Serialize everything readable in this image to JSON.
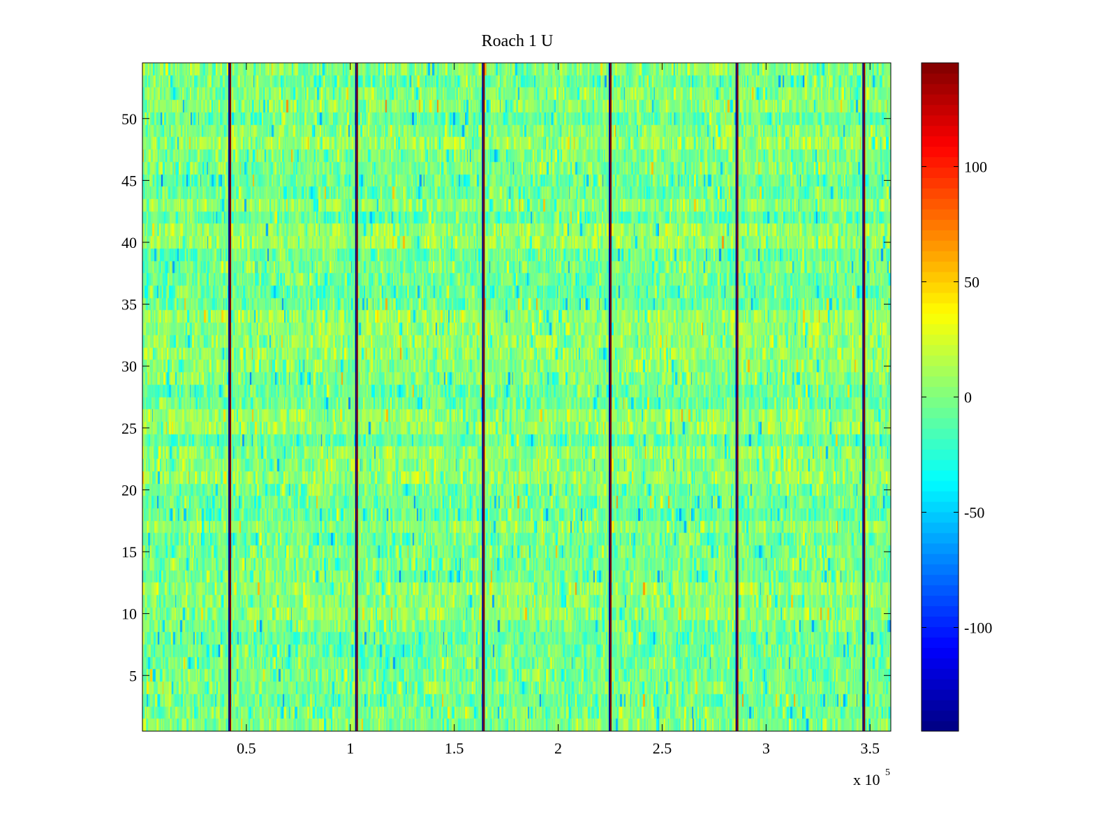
{
  "chart_data": {
    "type": "heatmap",
    "title": "Roach 1 U",
    "xlabel": "",
    "ylabel": "",
    "x_multiplier_label": "x 10",
    "x_multiplier_exponent": "5",
    "xlim": [
      0,
      3.6
    ],
    "ylim": [
      0.5,
      54.5
    ],
    "x_ticks": [
      {
        "value": 0.5,
        "label": "0.5"
      },
      {
        "value": 1,
        "label": "1"
      },
      {
        "value": 1.5,
        "label": "1.5"
      },
      {
        "value": 2,
        "label": "2"
      },
      {
        "value": 2.5,
        "label": "2.5"
      },
      {
        "value": 3,
        "label": "3"
      },
      {
        "value": 3.5,
        "label": "3.5"
      }
    ],
    "y_ticks": [
      {
        "value": 5,
        "label": "5"
      },
      {
        "value": 10,
        "label": "10"
      },
      {
        "value": 15,
        "label": "15"
      },
      {
        "value": 20,
        "label": "20"
      },
      {
        "value": 25,
        "label": "25"
      },
      {
        "value": 30,
        "label": "30"
      },
      {
        "value": 35,
        "label": "35"
      },
      {
        "value": 40,
        "label": "40"
      },
      {
        "value": 45,
        "label": "45"
      },
      {
        "value": 50,
        "label": "50"
      }
    ],
    "rows": 54,
    "colormap": "jet",
    "colorbar": {
      "range": [
        -145,
        145
      ],
      "ticks": [
        {
          "value": 100,
          "label": "100"
        },
        {
          "value": 50,
          "label": "50"
        },
        {
          "value": 0,
          "label": "0"
        },
        {
          "value": -50,
          "label": "-50"
        },
        {
          "value": -100,
          "label": "-100"
        }
      ]
    },
    "background_value_range": [
      -40,
      40
    ],
    "spike_lines": [
      {
        "x": 0.42,
        "values": [
          -140,
          145
        ]
      },
      {
        "x": 1.03,
        "values": [
          -140,
          145
        ]
      },
      {
        "x": 1.64,
        "values": [
          -140,
          145
        ]
      },
      {
        "x": 2.25,
        "values": [
          -140,
          145
        ]
      },
      {
        "x": 2.86,
        "values": [
          -140,
          145
        ]
      },
      {
        "x": 3.47,
        "values": [
          -140,
          145
        ]
      }
    ]
  }
}
